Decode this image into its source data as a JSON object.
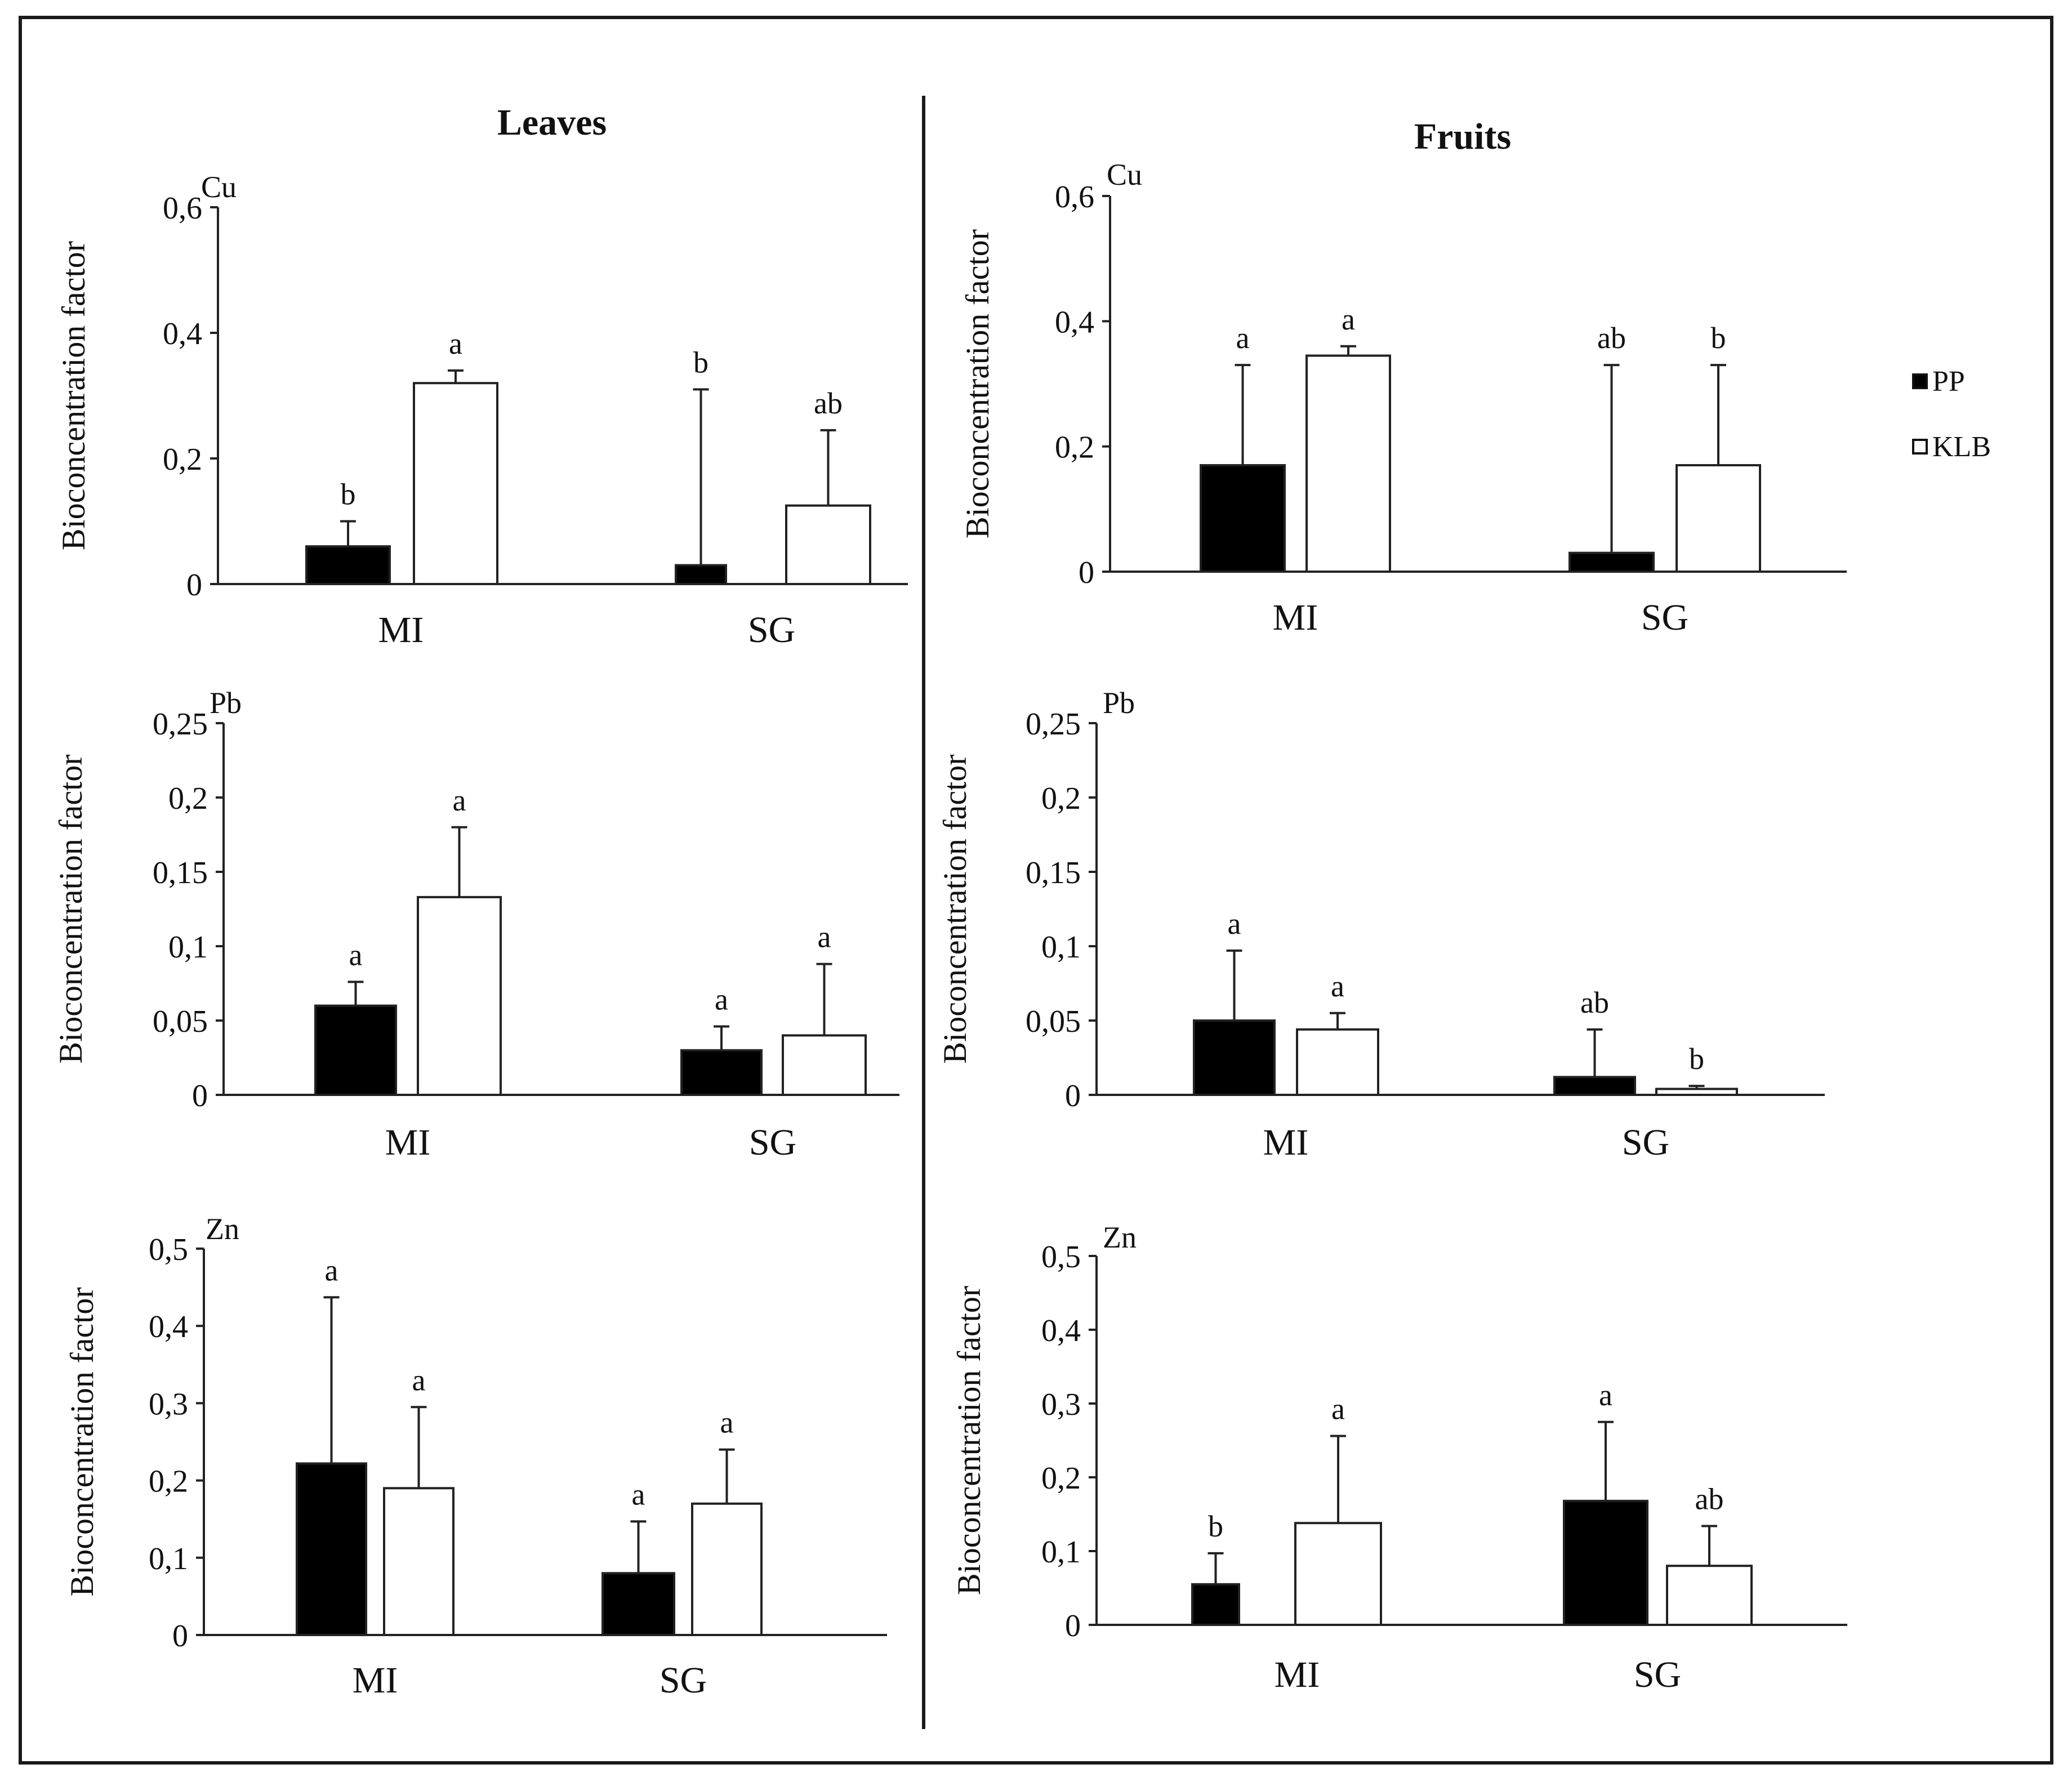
{
  "column_titles": {
    "leaves": "Leaves",
    "fruits": "Fruits"
  },
  "legend": [
    {
      "label": "PP",
      "color": "#000000"
    },
    {
      "label": "KLB",
      "color": "#ffffff"
    }
  ],
  "chart_data": [
    {
      "id": "leaves-cu",
      "type": "bar",
      "column": "Leaves",
      "element": "Cu",
      "ylabel": "Bioconcentration factor",
      "ylim": [
        0,
        0.6
      ],
      "yticks": [
        "0",
        "0,2",
        "0,4",
        "0,6"
      ],
      "categories": [
        "MI",
        "SG"
      ],
      "series": [
        {
          "name": "PP",
          "values": [
            0.06,
            0.03
          ],
          "errors": [
            0.04,
            0.28
          ],
          "letters": [
            "b",
            "b"
          ]
        },
        {
          "name": "KLB",
          "values": [
            0.32,
            0.125
          ],
          "errors": [
            0.02,
            0.12
          ],
          "letters": [
            "a",
            "ab"
          ]
        }
      ]
    },
    {
      "id": "fruits-cu",
      "type": "bar",
      "column": "Fruits",
      "element": "Cu",
      "ylabel": "Bioconcentration factor",
      "ylim": [
        0,
        0.6
      ],
      "yticks": [
        "0",
        "0,2",
        "0,4",
        "0,6"
      ],
      "categories": [
        "MI",
        "SG"
      ],
      "series": [
        {
          "name": "PP",
          "values": [
            0.17,
            0.03
          ],
          "errors": [
            0.16,
            0.3
          ],
          "letters": [
            "a",
            "ab"
          ]
        },
        {
          "name": "KLB",
          "values": [
            0.345,
            0.17
          ],
          "errors": [
            0.015,
            0.16
          ],
          "letters": [
            "a",
            "b"
          ]
        }
      ]
    },
    {
      "id": "leaves-pb",
      "type": "bar",
      "column": "Leaves",
      "element": "Pb",
      "ylabel": "Bioconcentration factor",
      "ylim": [
        0,
        0.25
      ],
      "yticks": [
        "0",
        "0,05",
        "0,1",
        "0,15",
        "0,2",
        "0,25"
      ],
      "categories": [
        "MI",
        "SG"
      ],
      "series": [
        {
          "name": "PP",
          "values": [
            0.06,
            0.03
          ],
          "errors": [
            0.016,
            0.016
          ],
          "letters": [
            "a",
            "a"
          ]
        },
        {
          "name": "KLB",
          "values": [
            0.133,
            0.04
          ],
          "errors": [
            0.047,
            0.048
          ],
          "letters": [
            "a",
            "a"
          ]
        }
      ]
    },
    {
      "id": "fruits-pb",
      "type": "bar",
      "column": "Fruits",
      "element": "Pb",
      "ylabel": "Bioconcentration factor",
      "ylim": [
        0,
        0.25
      ],
      "yticks": [
        "0",
        "0,05",
        "0,1",
        "0,15",
        "0,2",
        "0,25"
      ],
      "categories": [
        "MI",
        "SG"
      ],
      "series": [
        {
          "name": "PP",
          "values": [
            0.05,
            0.012
          ],
          "errors": [
            0.047,
            0.032
          ],
          "letters": [
            "a",
            "ab"
          ]
        },
        {
          "name": "KLB",
          "values": [
            0.044,
            0.004
          ],
          "errors": [
            0.011,
            0.002
          ],
          "letters": [
            "a",
            "b"
          ]
        }
      ]
    },
    {
      "id": "leaves-zn",
      "type": "bar",
      "column": "Leaves",
      "element": "Zn",
      "ylabel": "Bioconcentration factor",
      "ylim": [
        0,
        0.5
      ],
      "yticks": [
        "0",
        "0,1",
        "0,2",
        "0,3",
        "0,4",
        "0,5"
      ],
      "categories": [
        "MI",
        "SG"
      ],
      "series": [
        {
          "name": "PP",
          "values": [
            0.222,
            0.08
          ],
          "errors": [
            0.215,
            0.067
          ],
          "letters": [
            "a",
            "a"
          ]
        },
        {
          "name": "KLB",
          "values": [
            0.19,
            0.17
          ],
          "errors": [
            0.105,
            0.07
          ],
          "letters": [
            "a",
            "a"
          ]
        }
      ]
    },
    {
      "id": "fruits-zn",
      "type": "bar",
      "column": "Fruits",
      "element": "Zn",
      "ylabel": "Bioconcentration factor",
      "ylim": [
        0,
        0.5
      ],
      "yticks": [
        "0",
        "0,1",
        "0,2",
        "0,3",
        "0,4",
        "0,5"
      ],
      "categories": [
        "MI",
        "SG"
      ],
      "series": [
        {
          "name": "PP",
          "values": [
            0.055,
            0.168
          ],
          "errors": [
            0.042,
            0.107
          ],
          "letters": [
            "b",
            "a"
          ]
        },
        {
          "name": "KLB",
          "values": [
            0.138,
            0.08
          ],
          "errors": [
            0.118,
            0.054
          ],
          "letters": [
            "a",
            "ab"
          ]
        }
      ]
    }
  ]
}
